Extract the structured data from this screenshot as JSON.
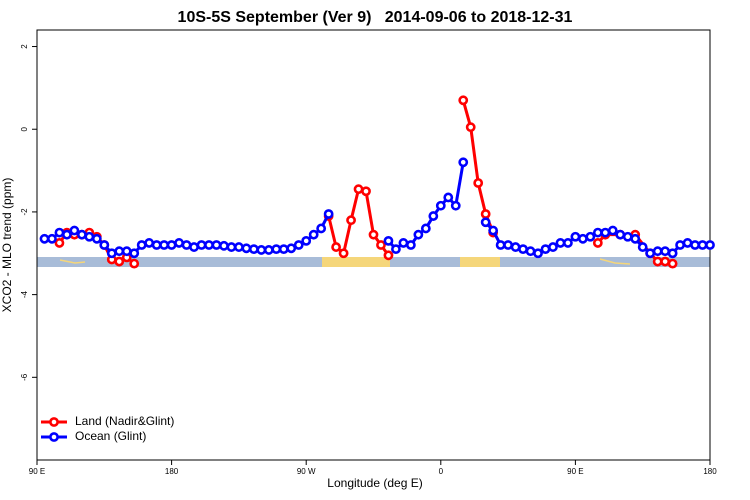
{
  "chart_data": {
    "type": "line",
    "title": "10S-5S September (Ver 9)   2014-09-06 to 2018-12-31",
    "x_label": "Longitude (deg E)",
    "y_label": "XCO2 - MLO trend (ppm)",
    "xlim": [
      90,
      540
    ],
    "ylim": [
      -8,
      2.4
    ],
    "xticks": [
      {
        "value": 90,
        "label": "90 E"
      },
      180,
      {
        "value": 270,
        "label": "90 W"
      },
      {
        "value": 360,
        "label": "0"
      },
      {
        "value": 450,
        "label": "90 E"
      },
      {
        "value": 540,
        "label": "180"
      }
    ],
    "yticks": [
      -6,
      -4,
      -2,
      0,
      2
    ],
    "legend": "bottom-left",
    "series": [
      {
        "name": "Land (Nadir&Glint)",
        "color": "#ff0000",
        "x": [
          105,
          110,
          115,
          120,
          125,
          130,
          135,
          140,
          145,
          150,
          155,
          160,
          285,
          290,
          295,
          300,
          305,
          310,
          315,
          320,
          325,
          330,
          375,
          380,
          385,
          390,
          395,
          400,
          465,
          470,
          480,
          490,
          500,
          505,
          510,
          515
        ],
        "values": [
          -2.75,
          -2.5,
          -2.55,
          -2.55,
          -2.5,
          -2.6,
          -2.8,
          -3.15,
          -3.2,
          -3.1,
          -3.25,
          null,
          -2.1,
          -2.85,
          -3.0,
          -2.2,
          -1.45,
          -1.5,
          -2.55,
          -2.8,
          -3.05,
          null,
          0.7,
          0.05,
          -1.3,
          -2.05,
          -2.5,
          null,
          -2.75,
          -2.55,
          -2.55,
          -2.55,
          -3.0,
          -3.2,
          -3.2,
          -3.25
        ]
      },
      {
        "name": "Ocean (Glint)",
        "color": "#0000ff",
        "x": [
          95,
          100,
          105,
          110,
          115,
          120,
          125,
          130,
          135,
          140,
          145,
          150,
          155,
          160,
          165,
          170,
          175,
          180,
          185,
          190,
          195,
          200,
          205,
          210,
          215,
          220,
          225,
          230,
          235,
          240,
          245,
          250,
          255,
          260,
          265,
          270,
          275,
          280,
          285,
          290,
          325,
          330,
          335,
          340,
          345,
          350,
          355,
          360,
          365,
          370,
          375,
          380,
          390,
          395,
          400,
          405,
          410,
          415,
          420,
          425,
          430,
          435,
          440,
          445,
          450,
          455,
          460,
          465,
          470,
          475,
          480,
          485,
          490,
          495,
          500,
          505,
          510,
          515,
          520,
          525,
          530,
          535,
          540
        ],
        "values": [
          -2.65,
          -2.65,
          -2.5,
          -2.55,
          -2.45,
          -2.55,
          -2.6,
          -2.65,
          -2.8,
          -3.0,
          -2.95,
          -2.95,
          -3.0,
          -2.8,
          -2.75,
          -2.8,
          -2.8,
          -2.8,
          -2.75,
          -2.8,
          -2.85,
          -2.8,
          -2.8,
          -2.8,
          -2.82,
          -2.85,
          -2.85,
          -2.88,
          -2.9,
          -2.92,
          -2.92,
          -2.9,
          -2.9,
          -2.88,
          -2.8,
          -2.7,
          -2.55,
          -2.4,
          -2.05,
          null,
          -2.7,
          -2.9,
          -2.75,
          -2.8,
          -2.55,
          -2.4,
          -2.1,
          -1.85,
          -1.65,
          -1.85,
          -0.8,
          null,
          -2.25,
          -2.45,
          -2.8,
          -2.8,
          -2.85,
          -2.9,
          -2.95,
          -3.0,
          -2.9,
          -2.85,
          -2.75,
          -2.75,
          -2.6,
          -2.65,
          -2.6,
          -2.5,
          -2.5,
          -2.45,
          -2.55,
          -2.6,
          -2.65,
          -2.85,
          -3.0,
          -2.95,
          -2.95,
          -3.0,
          -2.8,
          -2.75,
          -2.8,
          -2.8,
          -2.8
        ]
      }
    ]
  }
}
